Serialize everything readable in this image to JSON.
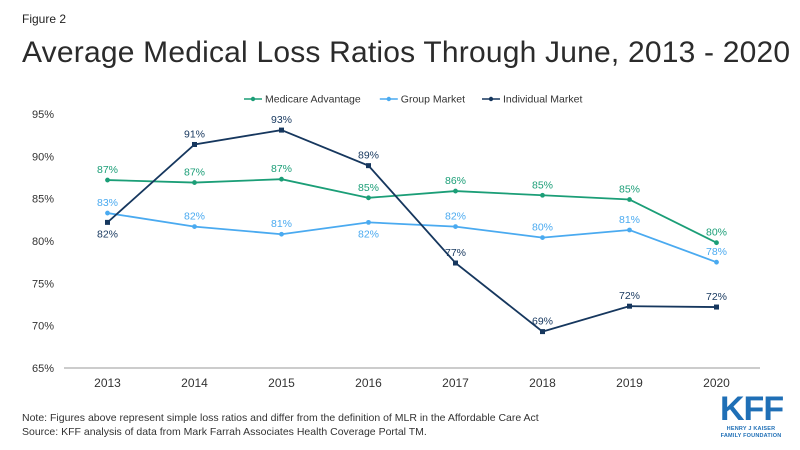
{
  "figure_label": "Figure 2",
  "title": "Average Medical Loss Ratios Through June, 2013 - 2020",
  "notes": [
    "Note: Figures above represent simple loss ratios and differ from the definition of MLR in the Affordable Care Act",
    "Source: KFF analysis of data from Mark Farrah Associates Health Coverage Portal TM."
  ],
  "logo": {
    "main": "KFF",
    "sub_line1": "HENRY J KAISER",
    "sub_line2": "FAMILY FOUNDATION"
  },
  "colors": {
    "medicare_advantage": "#1b9e77",
    "group_market": "#4aaaf0",
    "individual_market": "#16375e",
    "axis": "#999999",
    "text": "#333333"
  },
  "chart_data": {
    "type": "line",
    "categories": [
      "2013",
      "2014",
      "2015",
      "2016",
      "2017",
      "2018",
      "2019",
      "2020"
    ],
    "ylim": [
      65,
      95
    ],
    "yticks": [
      65,
      70,
      75,
      80,
      85,
      90,
      95
    ],
    "ytick_labels": [
      "65%",
      "70%",
      "75%",
      "80%",
      "85%",
      "90%",
      "95%"
    ],
    "legend_position": "top-center",
    "grid": false,
    "series": [
      {
        "name": "Medicare Advantage",
        "color_key": "medicare_advantage",
        "values": [
          87.2,
          86.9,
          87.3,
          85.1,
          85.9,
          85.4,
          84.9,
          79.8
        ],
        "labels": [
          "87%",
          "87%",
          "87%",
          "85%",
          "86%",
          "85%",
          "85%",
          "80%"
        ],
        "label_pos": [
          "above",
          "above",
          "above",
          "above",
          "above",
          "above",
          "above",
          "above"
        ]
      },
      {
        "name": "Group Market",
        "color_key": "group_market",
        "values": [
          83.3,
          81.7,
          80.8,
          82.2,
          81.7,
          80.4,
          81.3,
          77.5
        ],
        "labels": [
          "83%",
          "82%",
          "81%",
          "82%",
          "82%",
          "80%",
          "81%",
          "78%"
        ],
        "label_pos": [
          "above",
          "above",
          "above",
          "below",
          "above",
          "above",
          "above",
          "above"
        ]
      },
      {
        "name": "Individual Market",
        "color_key": "individual_market",
        "values": [
          82.2,
          91.4,
          93.1,
          88.9,
          77.4,
          69.3,
          72.3,
          72.2
        ],
        "labels": [
          "82%",
          "91%",
          "93%",
          "89%",
          "77%",
          "69%",
          "72%",
          "72%"
        ],
        "label_pos": [
          "below",
          "above",
          "above",
          "above",
          "above",
          "above",
          "above",
          "above"
        ]
      }
    ]
  }
}
